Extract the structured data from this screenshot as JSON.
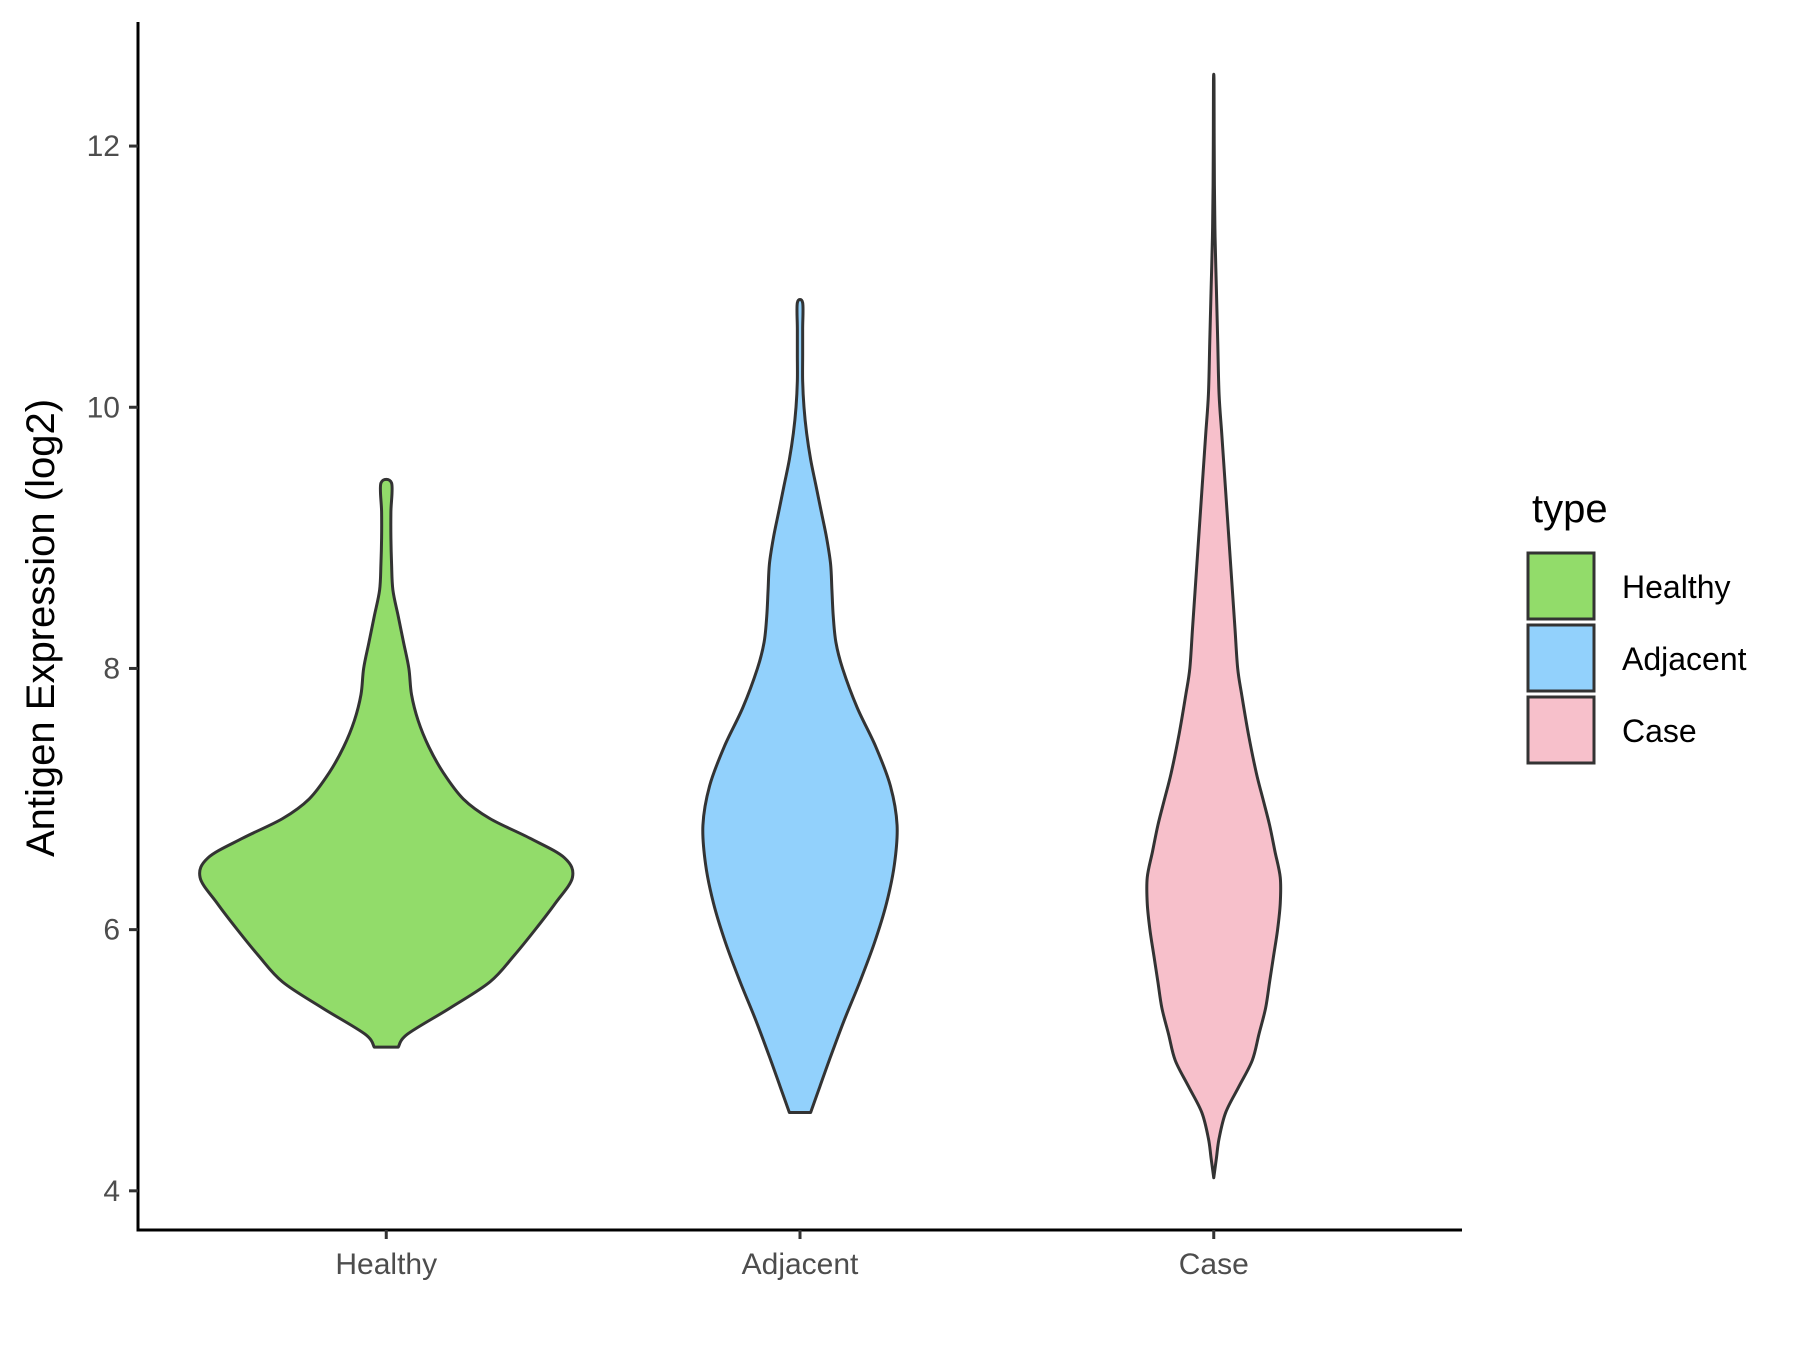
{
  "chart_data": {
    "type": "violin",
    "ylabel": "Antigen Expression (log2)",
    "xlabel": "",
    "ylim": [
      3.7,
      12.95
    ],
    "yticks": [
      4,
      6,
      8,
      10,
      12
    ],
    "categories": [
      "Healthy",
      "Adjacent",
      "Case"
    ],
    "legend": {
      "title": "type",
      "position": "right",
      "entries": [
        "Healthy",
        "Adjacent",
        "Case"
      ]
    },
    "grid": false,
    "series": [
      {
        "name": "Healthy",
        "color": "#92dc6a",
        "y_min": 5.1,
        "y_max": 9.42,
        "profile": [
          [
            5.1,
            0.09
          ],
          [
            5.2,
            0.16
          ],
          [
            5.4,
            0.48
          ],
          [
            5.6,
            0.78
          ],
          [
            5.8,
            0.96
          ],
          [
            6.0,
            1.12
          ],
          [
            6.2,
            1.27
          ],
          [
            6.4,
            1.4
          ],
          [
            6.55,
            1.34
          ],
          [
            6.7,
            1.08
          ],
          [
            6.85,
            0.78
          ],
          [
            7.0,
            0.58
          ],
          [
            7.2,
            0.43
          ],
          [
            7.4,
            0.32
          ],
          [
            7.6,
            0.24
          ],
          [
            7.8,
            0.19
          ],
          [
            8.0,
            0.17
          ],
          [
            8.2,
            0.13
          ],
          [
            8.4,
            0.09
          ],
          [
            8.6,
            0.05
          ],
          [
            8.8,
            0.04
          ],
          [
            9.0,
            0.035
          ],
          [
            9.2,
            0.035
          ],
          [
            9.42,
            0.04
          ]
        ]
      },
      {
        "name": "Adjacent",
        "color": "#92d1fc",
        "y_min": 4.6,
        "y_max": 10.8,
        "profile": [
          [
            4.6,
            0.08
          ],
          [
            4.8,
            0.15
          ],
          [
            5.0,
            0.22
          ],
          [
            5.3,
            0.33
          ],
          [
            5.6,
            0.45
          ],
          [
            5.9,
            0.56
          ],
          [
            6.2,
            0.65
          ],
          [
            6.5,
            0.71
          ],
          [
            6.8,
            0.73
          ],
          [
            7.1,
            0.68
          ],
          [
            7.4,
            0.57
          ],
          [
            7.7,
            0.43
          ],
          [
            8.0,
            0.32
          ],
          [
            8.2,
            0.27
          ],
          [
            8.4,
            0.25
          ],
          [
            8.6,
            0.24
          ],
          [
            8.8,
            0.23
          ],
          [
            9.0,
            0.2
          ],
          [
            9.2,
            0.16
          ],
          [
            9.4,
            0.12
          ],
          [
            9.6,
            0.08
          ],
          [
            9.8,
            0.05
          ],
          [
            10.0,
            0.03
          ],
          [
            10.2,
            0.02
          ],
          [
            10.4,
            0.02
          ],
          [
            10.6,
            0.02
          ],
          [
            10.8,
            0.02
          ]
        ]
      },
      {
        "name": "Case",
        "color": "#f7c0cb",
        "y_min": 4.1,
        "y_max": 12.5,
        "profile": [
          [
            4.1,
            0.0
          ],
          [
            4.25,
            0.02
          ],
          [
            4.4,
            0.04
          ],
          [
            4.6,
            0.09
          ],
          [
            4.8,
            0.19
          ],
          [
            5.0,
            0.29
          ],
          [
            5.2,
            0.34
          ],
          [
            5.4,
            0.39
          ],
          [
            5.6,
            0.42
          ],
          [
            5.8,
            0.45
          ],
          [
            6.0,
            0.48
          ],
          [
            6.2,
            0.5
          ],
          [
            6.4,
            0.5
          ],
          [
            6.6,
            0.46
          ],
          [
            6.8,
            0.42
          ],
          [
            7.0,
            0.37
          ],
          [
            7.2,
            0.32
          ],
          [
            7.5,
            0.26
          ],
          [
            7.8,
            0.21
          ],
          [
            8.0,
            0.18
          ],
          [
            8.3,
            0.16
          ],
          [
            8.6,
            0.14
          ],
          [
            8.9,
            0.12
          ],
          [
            9.2,
            0.1
          ],
          [
            9.5,
            0.08
          ],
          [
            9.8,
            0.06
          ],
          [
            10.1,
            0.04
          ],
          [
            10.5,
            0.03
          ],
          [
            10.9,
            0.02
          ],
          [
            11.3,
            0.01
          ],
          [
            11.7,
            0.005
          ],
          [
            12.1,
            0.003
          ],
          [
            12.5,
            0.002
          ]
        ]
      }
    ]
  }
}
